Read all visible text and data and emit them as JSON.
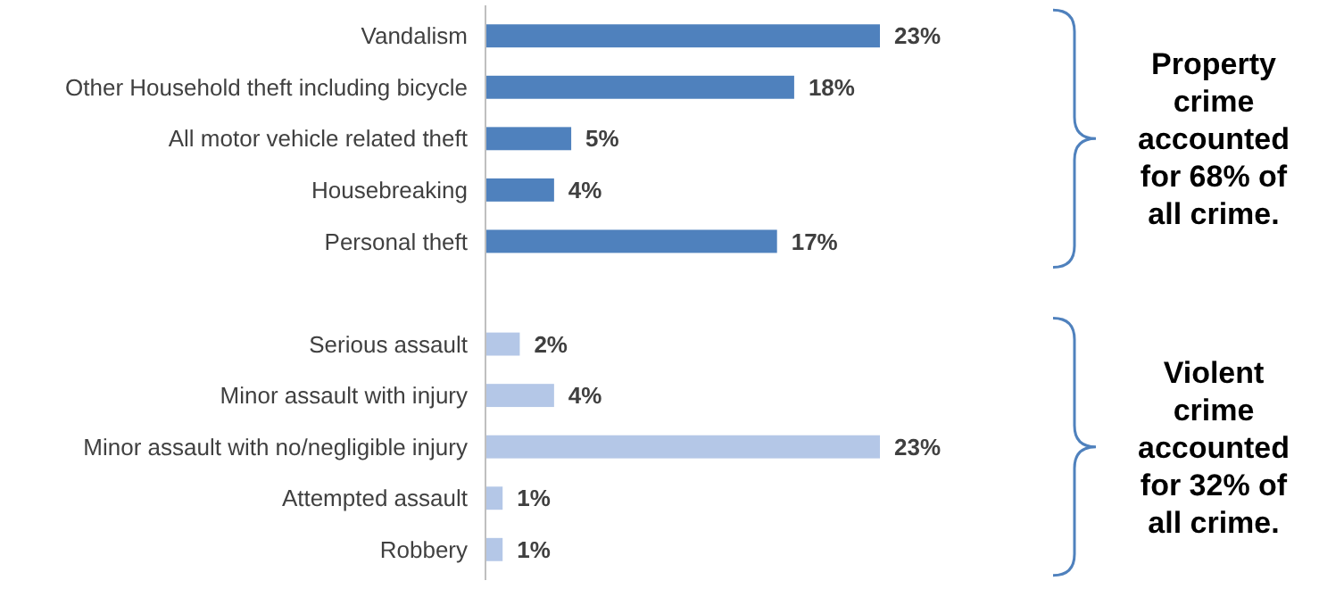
{
  "chart_data": {
    "type": "bar",
    "orientation": "horizontal",
    "categories": [
      "Vandalism",
      "Other Household theft including bicycle",
      "All motor vehicle related theft",
      "Housebreaking",
      "Personal theft",
      null,
      "Serious assault",
      "Minor assault with injury",
      "Minor assault with no/negligible injury",
      "Attempted assault",
      "Robbery"
    ],
    "values": [
      23,
      18,
      5,
      4,
      17,
      null,
      2,
      4,
      23,
      1,
      1
    ],
    "colors": [
      "#4f81bd",
      "#4f81bd",
      "#4f81bd",
      "#4f81bd",
      "#4f81bd",
      null,
      "#b4c7e7",
      "#b4c7e7",
      "#b4c7e7",
      "#b4c7e7",
      "#b4c7e7"
    ],
    "value_labels": [
      "23%",
      "18%",
      "5%",
      "4%",
      "17%",
      null,
      "2%",
      "4%",
      "23%",
      "1%",
      "1%"
    ],
    "annotations": [
      "Property crime accounted for 68% of all crime.",
      "Violent crime accounted for 32% of all crime."
    ]
  }
}
